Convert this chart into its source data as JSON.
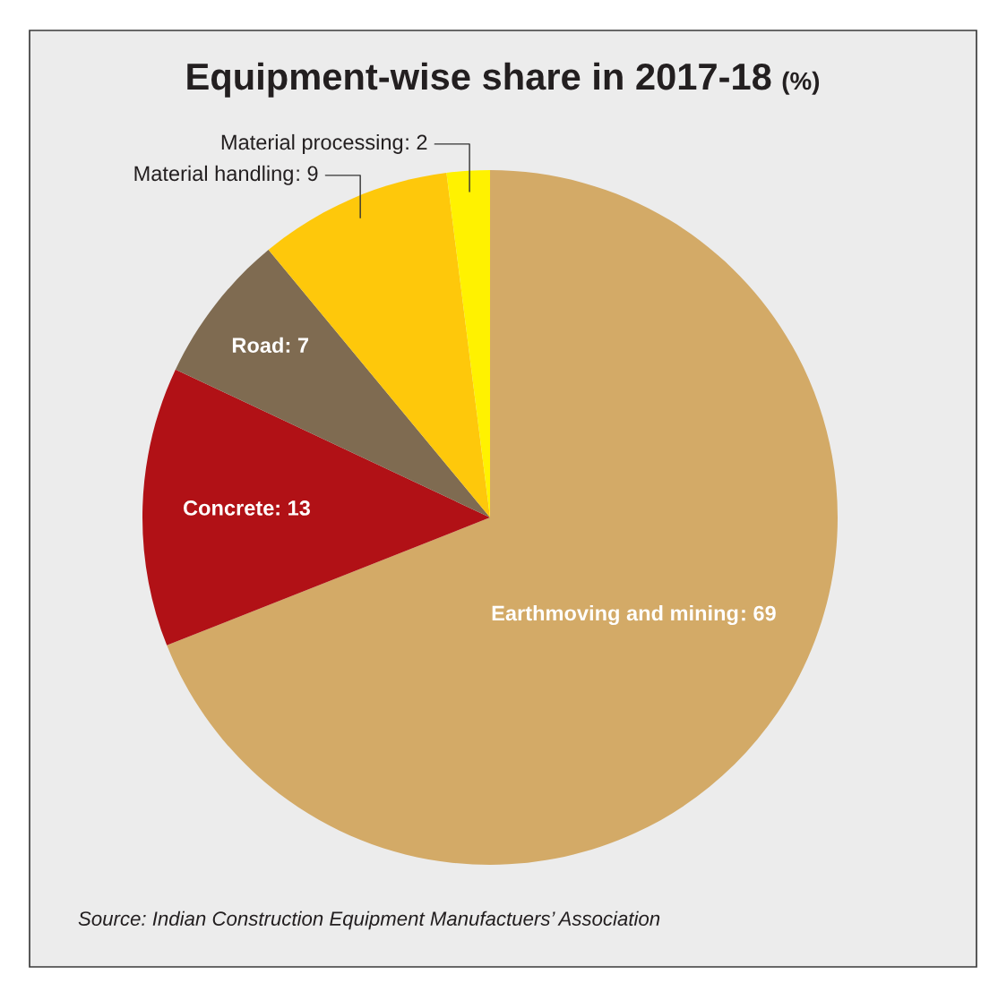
{
  "chart_data": {
    "type": "pie",
    "title": "Equipment-wise share in 2017-18",
    "subtitle": "(%)",
    "categories": [
      "Earthmoving and mining",
      "Concrete",
      "Road",
      "Material handling",
      "Material processing"
    ],
    "values": [
      69,
      13,
      7,
      9,
      2
    ],
    "value_labels": [
      ": 69",
      ": 13",
      ": 7",
      ": 9",
      ": 2"
    ],
    "colors": [
      "#d3aa67",
      "#b11116",
      "#7f6b51",
      "#fec80b",
      "#fff200"
    ],
    "annotations": [
      "Source: Indian Construction Equipment Manufactuers’ Association"
    ]
  }
}
